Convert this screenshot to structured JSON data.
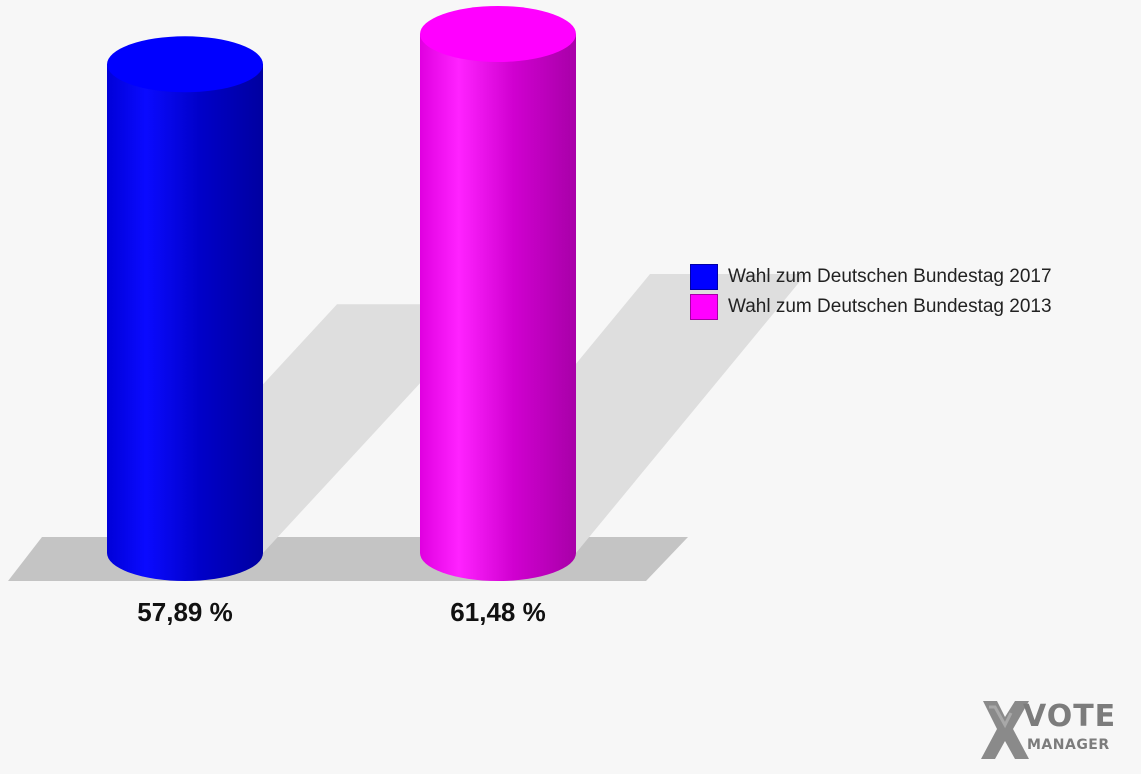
{
  "chart_data": {
    "type": "bar",
    "categories": [
      "Wahl zum Deutschen Bundestag 2017",
      "Wahl zum Deutschen Bundestag 2013"
    ],
    "values": [
      57.89,
      61.48
    ],
    "value_labels": [
      "57,89 %",
      "61,48 %"
    ],
    "colors": [
      "#0000ff",
      "#ff00ff"
    ],
    "legend": {
      "placement": "right",
      "entries": [
        "Wahl zum Deutschen Bundestag 2017",
        "Wahl zum Deutschen Bundestag 2013"
      ]
    },
    "ylim": [
      0,
      61.48
    ],
    "grid": false,
    "style": "3d-cylinder"
  },
  "logo": {
    "line1": "VOTE",
    "line2": "MANAGER"
  }
}
